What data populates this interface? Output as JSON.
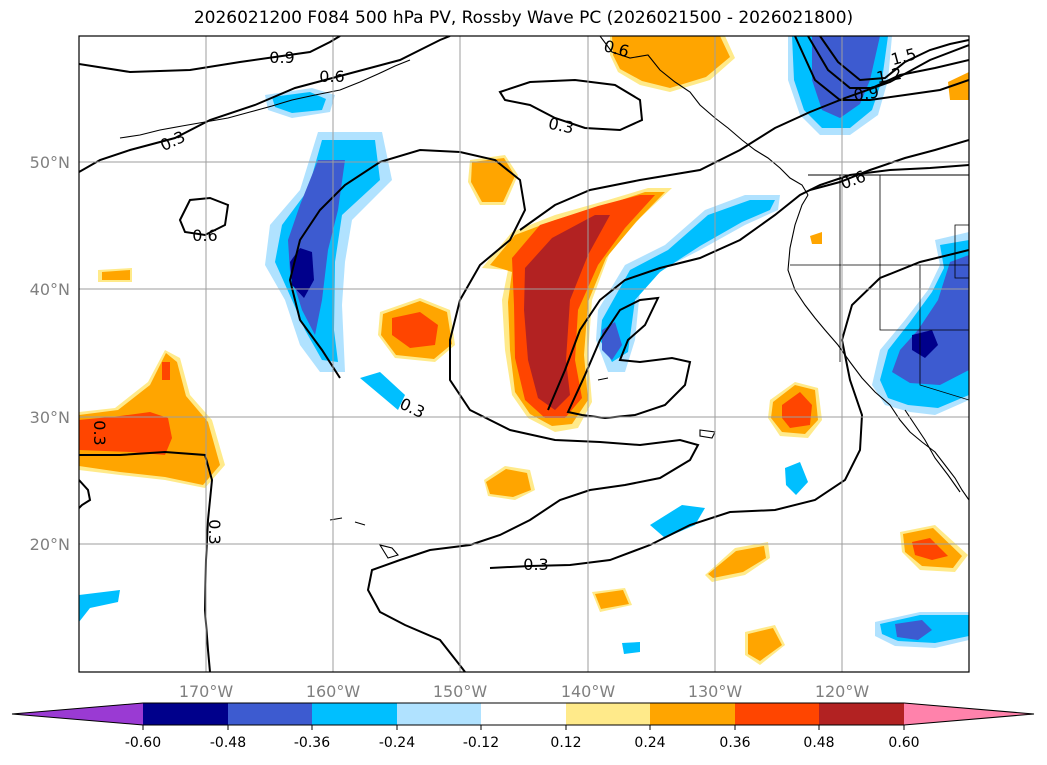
{
  "title": "2026021200 F084 500 hPa PV, Rossby Wave PC (2026021500 - 2026021800)",
  "lat_labels": [
    "50°N",
    "40°N",
    "30°N",
    "20°N"
  ],
  "lon_labels": [
    "170°W",
    "160°W",
    "150°W",
    "140°W",
    "130°W",
    "120°W"
  ],
  "contour_labels": [
    "0.9",
    "0.6",
    "0.3",
    "0.6",
    "0.3",
    "0.3",
    "0.6",
    "0.6",
    "1.5",
    "1.2",
    "0.9",
    "0.3",
    "0.3",
    "0.3"
  ],
  "colorbar": {
    "ticks": [
      "-0.60",
      "-0.48",
      "-0.36",
      "-0.24",
      "-0.12",
      "0.12",
      "0.24",
      "0.36",
      "0.48",
      "0.60"
    ],
    "colors": [
      "#9a3ad3",
      "#00008b",
      "#3d5bd0",
      "#00bfff",
      "#b0e2ff",
      "#ffffff",
      "#ffea8a",
      "#ffa500",
      "#ff4500",
      "#b22222",
      "#ff82ab"
    ]
  }
}
